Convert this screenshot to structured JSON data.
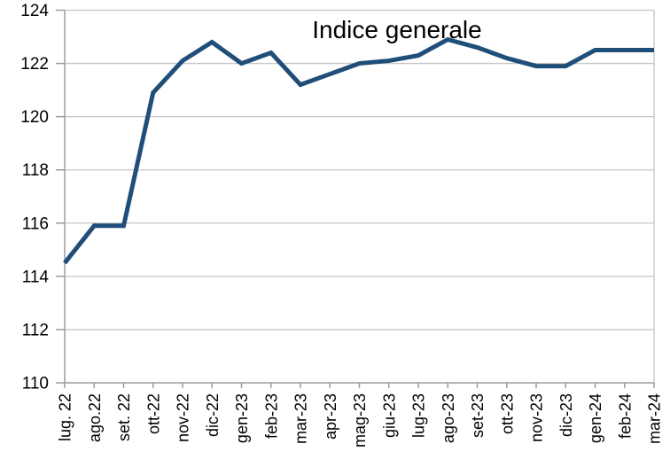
{
  "chart_data": {
    "type": "line",
    "title": "Indice generale",
    "categories": [
      "lug. 22",
      "ago.22",
      "set. 22",
      "ott-22",
      "nov-22",
      "dic-22",
      "gen-23",
      "feb-23",
      "mar-23",
      "apr-23",
      "mag-23",
      "giu-23",
      "lug-23",
      "ago-23",
      "set-23",
      "ott-23",
      "nov-23",
      "dic-23",
      "gen-24",
      "feb-24",
      "mar-24"
    ],
    "series": [
      {
        "name": "Indice generale",
        "values": [
          114.5,
          115.9,
          115.9,
          120.9,
          122.1,
          122.8,
          122.0,
          122.4,
          121.2,
          121.6,
          122.0,
          122.1,
          122.3,
          122.9,
          122.6,
          122.2,
          121.9,
          121.9,
          122.5,
          122.5,
          122.5
        ]
      }
    ],
    "xlabel": "",
    "ylabel": "",
    "ylim": [
      110,
      124
    ],
    "ytick_step": 2,
    "ytick_labels": [
      "110",
      "112",
      "114",
      "116",
      "118",
      "120",
      "122",
      "124"
    ],
    "grid": "horizontal",
    "legend_position": "none",
    "colors": {
      "line": "#1f4e79",
      "gridline": "#c6c6c6",
      "axis": "#9b9b9b",
      "text": "#000000",
      "background": "#ffffff"
    }
  }
}
